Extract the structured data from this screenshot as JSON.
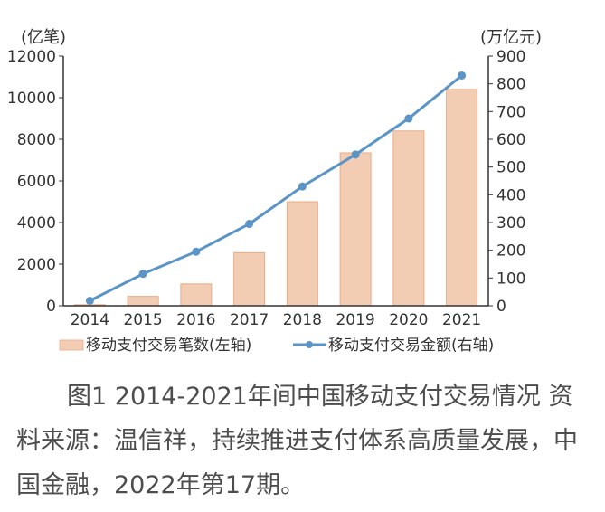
{
  "chart_data": {
    "type": "bar+line",
    "categories": [
      "2014",
      "2015",
      "2016",
      "2017",
      "2018",
      "2019",
      "2020",
      "2021"
    ],
    "series": [
      {
        "name": "移动支付交易笔数(左轴)",
        "type": "bar",
        "axis": "left",
        "values": [
          50,
          450,
          1050,
          2550,
          5000,
          7350,
          8400,
          10400
        ]
      },
      {
        "name": "移动支付交易金额(右轴)",
        "type": "line",
        "axis": "right",
        "values": [
          18,
          115,
          195,
          295,
          430,
          545,
          675,
          830
        ]
      }
    ],
    "y_left": {
      "label": "(亿笔)",
      "ylim": [
        0,
        12000
      ],
      "ticks": [
        "0",
        "2000",
        "4000",
        "6000",
        "8000",
        "10000",
        "12000"
      ]
    },
    "y_right": {
      "label": "(万亿元)",
      "ylim": [
        0,
        900
      ],
      "ticks": [
        "0",
        "100",
        "200",
        "300",
        "400",
        "500",
        "600",
        "700",
        "800",
        "900"
      ]
    },
    "grid": false,
    "legend_position": "bottom",
    "colors": {
      "bar_fill": "#f3cdb3",
      "bar_edge": "#e9ab86",
      "line": "#5b95c8",
      "axis": "#333333"
    }
  },
  "caption": {
    "text": "图1 2014-2021年间中国移动支付交易情况 资料来源：温信祥，持续推进支付体系高质量发展，中国金融，2022年第17期。"
  }
}
